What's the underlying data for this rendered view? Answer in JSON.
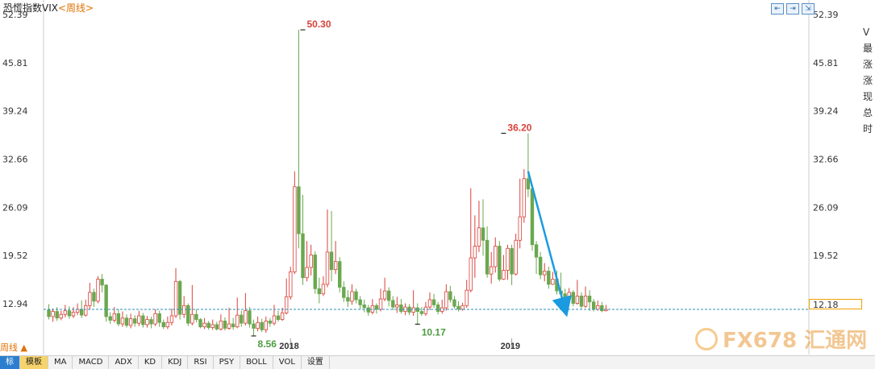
{
  "title": "恐慌指数VIX",
  "title_suffix": "<周线>",
  "period_toggle": "周线 ▲",
  "current_value": "12.18",
  "right_panel_chars": [
    "V",
    "最",
    "涨",
    "涨",
    "现",
    "总",
    "时"
  ],
  "tabs": [
    "标",
    "模板",
    "MA",
    "MACD",
    "ADX",
    "KD",
    "KDJ",
    "RSI",
    "PSY",
    "BOLL",
    "VOL",
    "设置"
  ],
  "watermark": "FX678 汇通网",
  "top_icons": [
    "⇤",
    "⇥",
    "⇲"
  ],
  "colors": {
    "up": "#d9413a",
    "down": "#6aa84f",
    "ref_line": "#2f8fb4",
    "arrow": "#1a9be0",
    "grid": "#cccccc"
  },
  "chart_data": {
    "type": "candlestick",
    "title": "恐慌指数VIX",
    "yticks": [
      52.39,
      45.81,
      39.24,
      32.66,
      26.09,
      19.52,
      12.94
    ],
    "ylim": [
      6.36,
      52.39
    ],
    "xlabels": [
      {
        "index": 59,
        "label": "2018"
      },
      {
        "index": 113,
        "label": "2019"
      }
    ],
    "annotations": [
      {
        "index": 62,
        "value": 50.3,
        "label": "50.30",
        "kind": "high"
      },
      {
        "index": 111,
        "value": 36.2,
        "label": "36.20",
        "kind": "high"
      },
      {
        "index": 50,
        "value": 8.56,
        "label": "8.56",
        "kind": "low"
      },
      {
        "index": 90,
        "value": 10.17,
        "label": "10.17",
        "kind": "low"
      }
    ],
    "reference_line": 12.18,
    "trend_arrow": {
      "from_index": 117,
      "from_value": 31.0,
      "to_index": 126,
      "to_value": 12.2
    },
    "candles": [
      [
        12.1,
        11.2,
        12.9,
        10.8
      ],
      [
        11.2,
        11.9,
        12.3,
        10.5
      ],
      [
        11.9,
        11.0,
        12.5,
        10.6
      ],
      [
        11.0,
        11.5,
        12.0,
        10.7
      ],
      [
        11.5,
        12.0,
        12.8,
        11.1
      ],
      [
        12.0,
        11.3,
        12.6,
        10.9
      ],
      [
        11.3,
        11.8,
        12.5,
        11.0
      ],
      [
        11.8,
        12.2,
        13.0,
        11.4
      ],
      [
        12.2,
        11.4,
        13.4,
        11.0
      ],
      [
        11.4,
        12.7,
        13.5,
        11.2
      ],
      [
        12.7,
        14.5,
        15.8,
        12.2
      ],
      [
        14.5,
        13.3,
        15.0,
        12.5
      ],
      [
        13.3,
        16.3,
        16.7,
        13.0
      ],
      [
        16.3,
        15.5,
        17.0,
        14.5
      ],
      [
        15.5,
        11.2,
        15.6,
        10.5
      ],
      [
        11.2,
        10.7,
        11.8,
        10.2
      ],
      [
        10.7,
        11.6,
        12.5,
        10.4
      ],
      [
        11.6,
        10.2,
        12.2,
        9.9
      ],
      [
        10.2,
        11.0,
        11.9,
        9.8
      ],
      [
        11.0,
        10.0,
        11.5,
        9.7
      ],
      [
        10.0,
        10.9,
        11.6,
        9.6
      ],
      [
        10.9,
        10.3,
        11.4,
        9.8
      ],
      [
        10.3,
        11.3,
        12.0,
        9.9
      ],
      [
        11.3,
        10.1,
        11.7,
        9.7
      ],
      [
        10.1,
        10.8,
        11.3,
        9.7
      ],
      [
        10.8,
        10.2,
        11.2,
        9.6
      ],
      [
        10.2,
        11.6,
        12.2,
        9.9
      ],
      [
        11.6,
        10.4,
        12.0,
        9.8
      ],
      [
        10.4,
        9.8,
        10.8,
        9.5
      ],
      [
        9.8,
        10.4,
        11.2,
        9.5
      ],
      [
        10.4,
        11.3,
        12.3,
        10.0
      ],
      [
        11.3,
        16.0,
        17.8,
        11.0
      ],
      [
        16.0,
        11.5,
        16.2,
        10.8
      ],
      [
        11.5,
        12.7,
        14.0,
        11.0
      ],
      [
        12.7,
        10.3,
        13.0,
        9.9
      ],
      [
        10.3,
        11.5,
        15.5,
        10.0
      ],
      [
        11.5,
        10.8,
        12.2,
        10.4
      ],
      [
        10.8,
        9.8,
        11.0,
        9.6
      ],
      [
        9.8,
        10.3,
        11.0,
        9.5
      ],
      [
        10.3,
        9.7,
        10.6,
        9.4
      ],
      [
        9.7,
        10.1,
        10.8,
        9.4
      ],
      [
        10.1,
        9.5,
        10.5,
        9.3
      ],
      [
        9.5,
        10.6,
        11.5,
        9.3
      ],
      [
        10.6,
        9.6,
        11.1,
        9.3
      ],
      [
        9.6,
        10.2,
        12.4,
        9.4
      ],
      [
        10.2,
        9.8,
        11.0,
        9.4
      ],
      [
        9.8,
        11.4,
        13.8,
        9.6
      ],
      [
        11.4,
        10.3,
        12.0,
        9.8
      ],
      [
        10.3,
        12.0,
        14.4,
        10.0
      ],
      [
        12.0,
        10.2,
        12.5,
        9.7
      ],
      [
        10.2,
        9.6,
        10.8,
        8.56
      ],
      [
        9.6,
        10.4,
        11.2,
        9.2
      ],
      [
        10.4,
        9.4,
        10.9,
        9.1
      ],
      [
        9.4,
        10.6,
        11.2,
        9.0
      ],
      [
        10.6,
        10.3,
        11.0,
        9.8
      ],
      [
        10.3,
        11.3,
        12.8,
        10.0
      ],
      [
        11.3,
        10.8,
        12.0,
        10.5
      ],
      [
        10.8,
        11.7,
        12.4,
        10.6
      ],
      [
        11.7,
        13.9,
        16.4,
        11.5
      ],
      [
        13.9,
        17.3,
        18.0,
        13.5
      ],
      [
        17.3,
        28.9,
        31.0,
        17.0
      ],
      [
        28.9,
        22.5,
        50.3,
        20.5
      ],
      [
        22.5,
        16.5,
        27.8,
        15.5
      ],
      [
        16.5,
        17.9,
        21.5,
        16.0
      ],
      [
        17.9,
        19.6,
        21.0,
        16.8
      ],
      [
        19.6,
        15.0,
        20.1,
        14.3
      ],
      [
        15.0,
        14.3,
        16.5,
        13.0
      ],
      [
        14.3,
        15.6,
        16.7,
        14.0
      ],
      [
        15.6,
        20.0,
        25.8,
        15.2
      ],
      [
        20.0,
        17.6,
        25.6,
        16.0
      ],
      [
        17.6,
        18.7,
        21.5,
        17.0
      ],
      [
        18.7,
        15.2,
        19.3,
        14.5
      ],
      [
        15.2,
        13.8,
        16.0,
        13.2
      ],
      [
        13.8,
        13.3,
        14.8,
        12.5
      ],
      [
        13.3,
        14.6,
        15.6,
        12.8
      ],
      [
        14.6,
        13.5,
        15.0,
        13.0
      ],
      [
        13.5,
        12.8,
        14.0,
        12.2
      ],
      [
        12.8,
        12.4,
        13.5,
        11.8
      ],
      [
        12.4,
        11.8,
        12.8,
        11.3
      ],
      [
        11.8,
        12.7,
        13.6,
        11.5
      ],
      [
        12.7,
        12.2,
        13.0,
        11.6
      ],
      [
        12.2,
        13.6,
        15.0,
        11.9
      ],
      [
        13.6,
        14.7,
        16.5,
        13.3
      ],
      [
        14.7,
        13.4,
        15.2,
        12.6
      ],
      [
        13.4,
        12.5,
        14.0,
        12.1
      ],
      [
        12.5,
        12.8,
        13.9,
        11.7
      ],
      [
        12.8,
        11.9,
        13.6,
        11.6
      ],
      [
        11.9,
        12.5,
        13.0,
        11.4
      ],
      [
        12.5,
        11.8,
        12.9,
        11.4
      ],
      [
        11.8,
        12.4,
        14.8,
        11.3
      ],
      [
        12.4,
        11.9,
        13.0,
        10.17
      ],
      [
        11.9,
        11.6,
        12.5,
        11.3
      ],
      [
        11.6,
        12.5,
        13.2,
        11.3
      ],
      [
        12.5,
        13.5,
        14.5,
        12.1
      ],
      [
        13.5,
        12.8,
        14.3,
        12.4
      ],
      [
        12.8,
        11.9,
        13.2,
        11.5
      ],
      [
        11.9,
        12.4,
        13.5,
        11.6
      ],
      [
        12.4,
        14.6,
        15.6,
        12.0
      ],
      [
        14.6,
        13.5,
        15.4,
        13.1
      ],
      [
        13.5,
        12.6,
        14.0,
        12.3
      ],
      [
        12.6,
        12.2,
        13.3,
        11.9
      ],
      [
        12.2,
        12.7,
        13.1,
        12.0
      ],
      [
        12.7,
        14.8,
        16.2,
        12.4
      ],
      [
        14.8,
        19.2,
        28.7,
        14.5
      ],
      [
        19.2,
        20.8,
        25.0,
        16.5
      ],
      [
        20.8,
        23.3,
        27.0,
        20.0
      ],
      [
        23.3,
        21.6,
        27.2,
        19.5
      ],
      [
        21.6,
        17.0,
        23.5,
        16.5
      ],
      [
        17.0,
        18.0,
        20.0,
        15.7
      ],
      [
        18.0,
        20.8,
        22.0,
        17.2
      ],
      [
        20.8,
        16.3,
        21.5,
        16.0
      ],
      [
        16.3,
        17.5,
        19.6,
        16.2
      ],
      [
        17.5,
        20.5,
        21.0,
        16.2
      ],
      [
        20.5,
        17.0,
        21.0,
        15.5
      ],
      [
        17.0,
        21.6,
        22.5,
        16.8
      ],
      [
        21.6,
        24.8,
        30.0,
        20.5
      ],
      [
        24.8,
        30.0,
        31.3,
        24.0
      ],
      [
        30.0,
        28.6,
        36.2,
        27.5
      ],
      [
        28.6,
        21.0,
        29.0,
        20.2
      ],
      [
        21.0,
        19.3,
        21.5,
        17.0
      ],
      [
        19.3,
        16.9,
        20.0,
        16.3
      ],
      [
        16.9,
        17.4,
        18.5,
        16.0
      ],
      [
        17.4,
        15.6,
        18.0,
        15.0
      ],
      [
        15.6,
        16.3,
        17.3,
        15.5
      ],
      [
        16.3,
        14.7,
        17.5,
        14.2
      ],
      [
        14.7,
        14.3,
        17.2,
        13.9
      ],
      [
        14.3,
        13.7,
        15.0,
        13.4
      ],
      [
        13.7,
        14.5,
        15.1,
        13.5
      ],
      [
        14.5,
        13.0,
        14.8,
        12.6
      ],
      [
        13.0,
        14.0,
        16.2,
        12.8
      ],
      [
        14.0,
        12.6,
        14.5,
        12.3
      ],
      [
        12.6,
        14.0,
        15.3,
        12.4
      ],
      [
        14.0,
        13.2,
        14.8,
        12.0
      ],
      [
        13.2,
        12.2,
        13.6,
        11.9
      ],
      [
        12.2,
        12.7,
        13.4,
        12.0
      ],
      [
        12.7,
        12.0,
        13.2,
        11.8
      ],
      [
        12.0,
        12.2,
        12.8,
        11.9
      ]
    ]
  }
}
